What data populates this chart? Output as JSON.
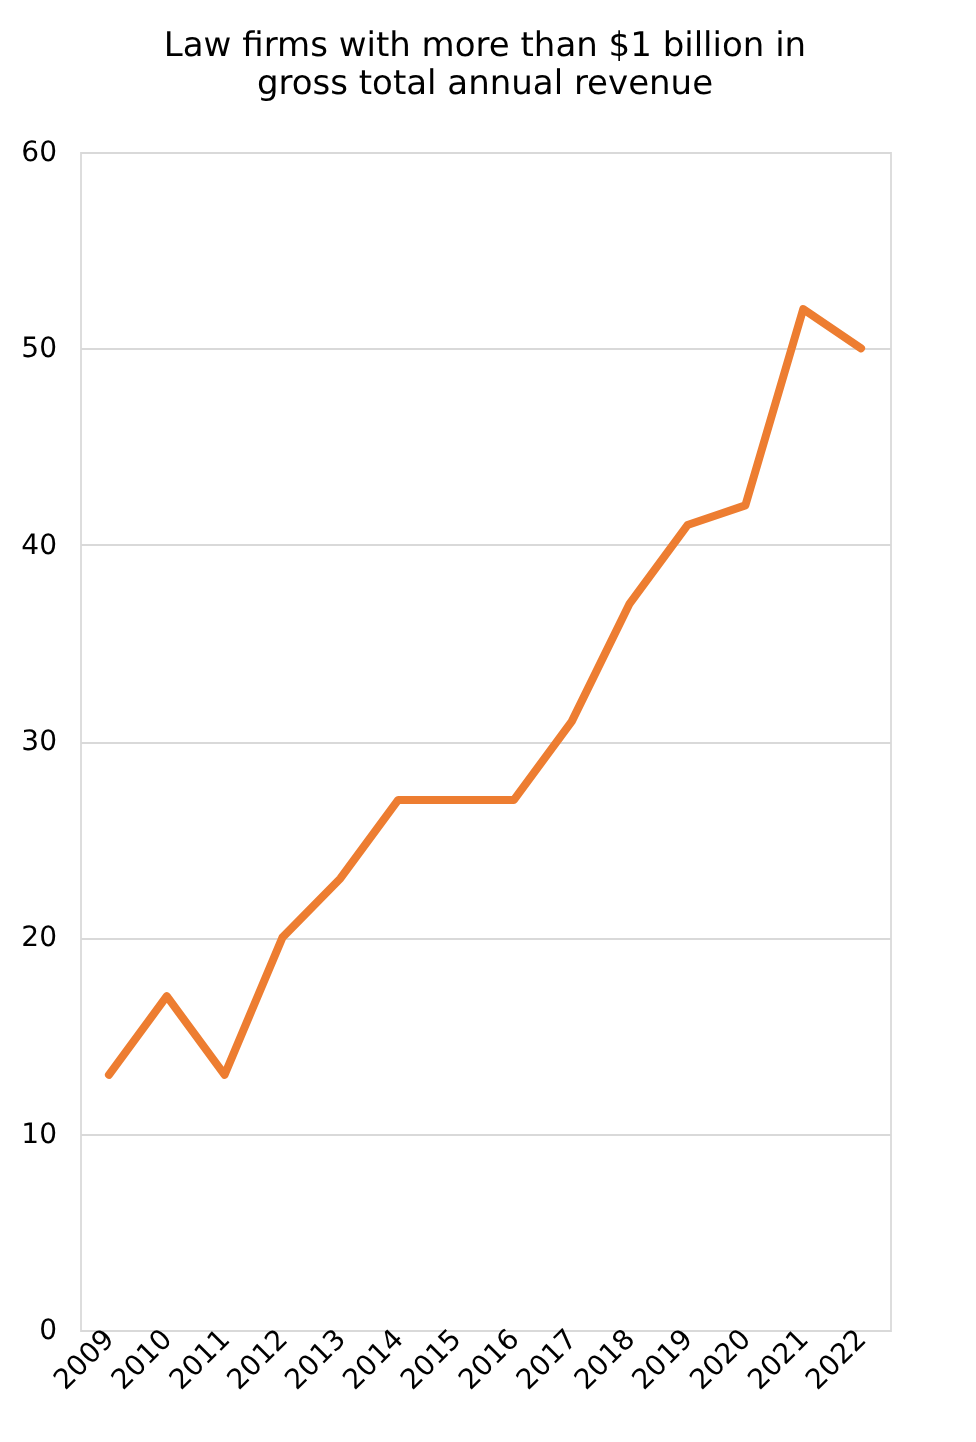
{
  "chart_data": {
    "type": "line",
    "title": [
      "Law firms with more than $1 billion in",
      "gross total annual revenue"
    ],
    "categories": [
      "2009",
      "2010",
      "2011",
      "2012",
      "2013",
      "2014",
      "2015",
      "2016",
      "2017",
      "2018",
      "2019",
      "2020",
      "2021",
      "2022"
    ],
    "series": [
      {
        "color": "#ed7d31",
        "values": [
          13,
          17,
          13,
          20,
          23,
          27,
          27,
          27,
          31,
          37,
          41,
          42,
          52,
          50
        ]
      }
    ],
    "ylim": [
      0,
      60
    ],
    "yticks": [
      0,
      10,
      20,
      30,
      40,
      50,
      60
    ],
    "grid": "y",
    "legend": false
  }
}
